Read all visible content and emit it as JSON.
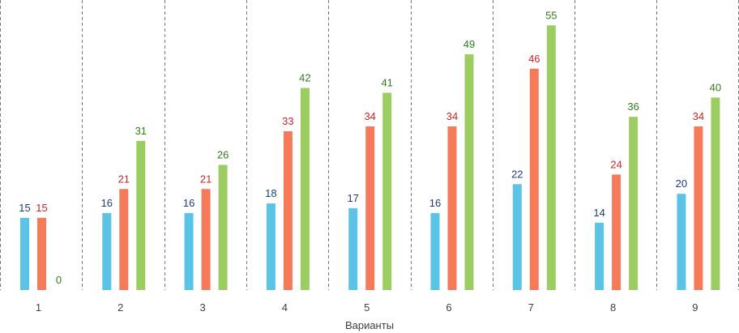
{
  "chart_data": {
    "type": "bar",
    "xlabel": "Варианты",
    "ylabel": "",
    "ylim": [
      0,
      58
    ],
    "categories": [
      "1",
      "2",
      "3",
      "4",
      "5",
      "6",
      "7",
      "8",
      "9"
    ],
    "grid": "vertical dashed separators between categories",
    "legend": "none",
    "series": [
      {
        "color": "#5bc4e6",
        "label_color": "#1f3c73",
        "values": [
          15,
          16,
          16,
          18,
          17,
          16,
          22,
          14,
          20
        ]
      },
      {
        "color": "#f57a5a",
        "label_color": "#c0272d",
        "values": [
          15,
          21,
          21,
          33,
          34,
          34,
          46,
          24,
          34
        ]
      },
      {
        "color": "#9ccd62",
        "label_color": "#2e7d1a",
        "values": [
          0,
          31,
          26,
          42,
          41,
          49,
          55,
          36,
          40
        ]
      }
    ]
  }
}
